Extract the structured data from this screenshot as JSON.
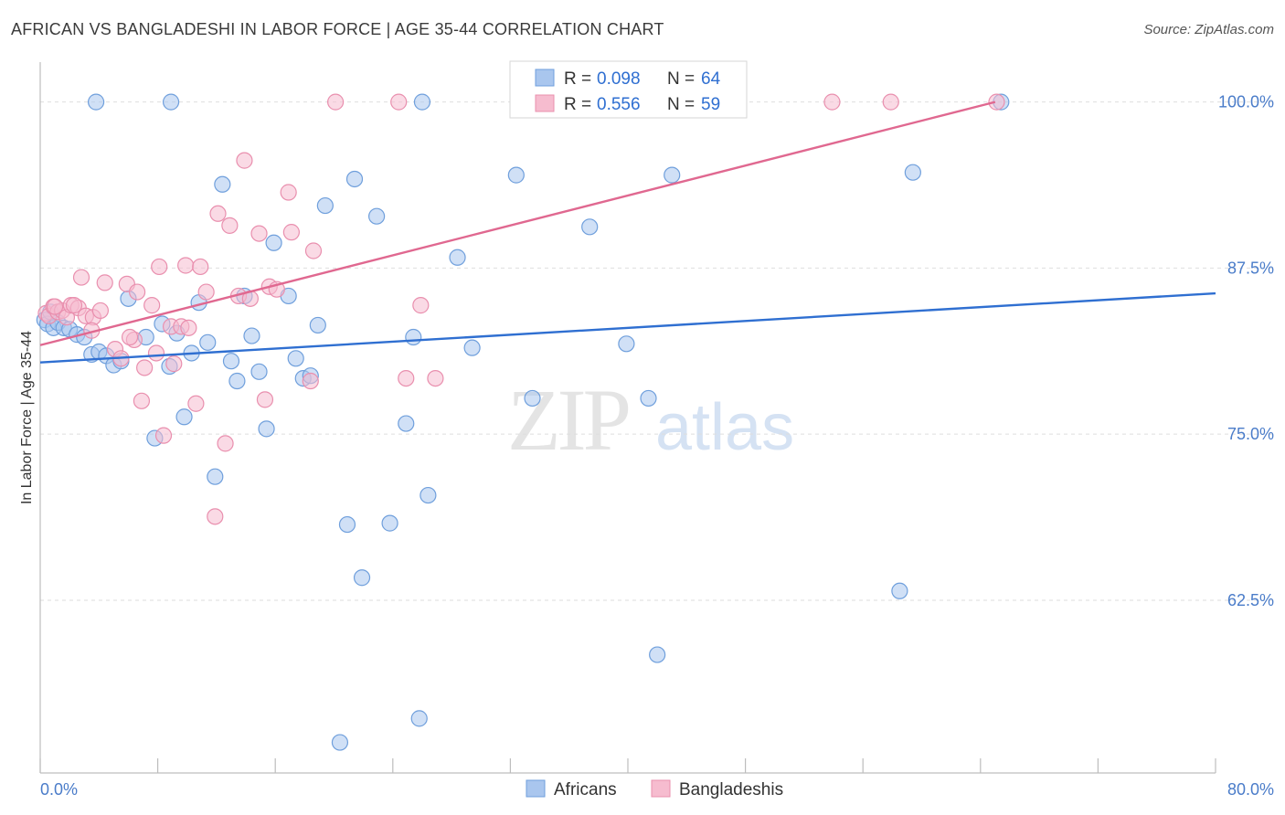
{
  "title": "AFRICAN VS BANGLADESHI IN LABOR FORCE | AGE 35-44 CORRELATION CHART",
  "source": "Source: ZipAtlas.com",
  "watermark": {
    "zip": "ZIP",
    "atlas": "atlas"
  },
  "colors": {
    "africans_fill": "#a9c6ee",
    "africans_stroke": "#6f9fdc",
    "africans_line": "#2f6fd1",
    "bangladeshis_fill": "#f6bccf",
    "bangladeshis_stroke": "#e98fae",
    "bangladeshis_line": "#e06890",
    "tick_color": "#4a7cc9"
  },
  "legend": {
    "rows": [
      {
        "series": "Africans",
        "r_label": "R =",
        "r_value": "0.098",
        "n_label": "N =",
        "n_value": "64"
      },
      {
        "series": "Bangladeshis",
        "r_label": "R =",
        "r_value": "0.556",
        "n_label": "N =",
        "n_value": "59"
      }
    ]
  },
  "chart_data": {
    "type": "scatter",
    "title": "AFRICAN VS BANGLADESHI IN LABOR FORCE | AGE 35-44 CORRELATION CHART",
    "xlabel": "",
    "ylabel": "In Labor Force | Age 35-44",
    "xlim": [
      0,
      80
    ],
    "ylim": [
      49.5,
      103
    ],
    "x_tick_labels": [
      "0.0%",
      "80.0%"
    ],
    "y_ticks": [
      62.5,
      75.0,
      87.5,
      100.0
    ],
    "y_tick_labels": [
      "62.5%",
      "75.0%",
      "87.5%",
      "100.0%"
    ],
    "grid": true,
    "legend_position": "top-center",
    "series": [
      {
        "name": "Africans",
        "trend": {
          "x": [
            0,
            80
          ],
          "y": [
            80.4,
            85.6
          ]
        },
        "points": [
          [
            0.3,
            83.6
          ],
          [
            0.5,
            83.3
          ],
          [
            0.7,
            84.2
          ],
          [
            0.9,
            83.0
          ],
          [
            1.2,
            83.4
          ],
          [
            1.6,
            83.0
          ],
          [
            2.0,
            82.9
          ],
          [
            2.5,
            82.5
          ],
          [
            3.0,
            82.3
          ],
          [
            3.5,
            81.0
          ],
          [
            4.0,
            81.2
          ],
          [
            4.5,
            80.9
          ],
          [
            5.0,
            80.2
          ],
          [
            5.5,
            80.5
          ],
          [
            6.0,
            85.2
          ],
          [
            7.2,
            82.3
          ],
          [
            7.8,
            74.7
          ],
          [
            8.3,
            83.3
          ],
          [
            8.8,
            80.1
          ],
          [
            9.3,
            82.6
          ],
          [
            9.8,
            76.3
          ],
          [
            10.3,
            81.1
          ],
          [
            10.8,
            84.9
          ],
          [
            11.4,
            81.9
          ],
          [
            11.9,
            71.8
          ],
          [
            12.4,
            93.8
          ],
          [
            13.0,
            80.5
          ],
          [
            13.4,
            79.0
          ],
          [
            13.9,
            85.4
          ],
          [
            14.4,
            82.4
          ],
          [
            14.9,
            79.7
          ],
          [
            15.4,
            75.4
          ],
          [
            15.9,
            89.4
          ],
          [
            16.9,
            85.4
          ],
          [
            17.4,
            80.7
          ],
          [
            17.9,
            79.2
          ],
          [
            18.4,
            79.4
          ],
          [
            18.9,
            83.2
          ],
          [
            19.4,
            92.2
          ],
          [
            20.4,
            51.8
          ],
          [
            20.9,
            68.2
          ],
          [
            21.4,
            94.2
          ],
          [
            21.9,
            64.2
          ],
          [
            22.9,
            91.4
          ],
          [
            23.8,
            68.3
          ],
          [
            24.9,
            75.8
          ],
          [
            25.4,
            82.3
          ],
          [
            26.4,
            70.4
          ],
          [
            26.0,
            100.0
          ],
          [
            28.4,
            88.3
          ],
          [
            29.4,
            81.5
          ],
          [
            32.4,
            94.5
          ],
          [
            33.5,
            77.7
          ],
          [
            37.4,
            90.6
          ],
          [
            39.9,
            81.8
          ],
          [
            41.4,
            77.7
          ],
          [
            42.0,
            58.4
          ],
          [
            43.0,
            94.5
          ],
          [
            58.5,
            63.2
          ],
          [
            59.4,
            94.7
          ],
          [
            65.4,
            100.0
          ],
          [
            25.8,
            53.6
          ],
          [
            8.9,
            100.0
          ],
          [
            3.8,
            100.0
          ]
        ]
      },
      {
        "name": "Bangladeshis",
        "trend": {
          "x": [
            0,
            65.0
          ],
          "y": [
            81.7,
            100.0
          ]
        },
        "points": [
          [
            0.4,
            84.1
          ],
          [
            0.6,
            83.9
          ],
          [
            0.9,
            84.6
          ],
          [
            1.2,
            84.2
          ],
          [
            1.5,
            84.3
          ],
          [
            1.8,
            83.8
          ],
          [
            2.1,
            84.7
          ],
          [
            2.6,
            84.5
          ],
          [
            2.8,
            86.8
          ],
          [
            3.1,
            83.9
          ],
          [
            3.6,
            83.8
          ],
          [
            4.1,
            84.3
          ],
          [
            4.4,
            86.4
          ],
          [
            5.1,
            81.4
          ],
          [
            5.5,
            80.7
          ],
          [
            5.9,
            86.3
          ],
          [
            6.4,
            82.1
          ],
          [
            6.6,
            85.7
          ],
          [
            6.9,
            77.5
          ],
          [
            7.1,
            80.0
          ],
          [
            7.6,
            84.7
          ],
          [
            7.9,
            81.1
          ],
          [
            8.1,
            87.6
          ],
          [
            8.4,
            74.9
          ],
          [
            8.9,
            83.1
          ],
          [
            9.1,
            80.3
          ],
          [
            9.6,
            83.1
          ],
          [
            9.9,
            87.7
          ],
          [
            10.1,
            83.0
          ],
          [
            10.6,
            77.3
          ],
          [
            10.9,
            87.6
          ],
          [
            11.3,
            85.7
          ],
          [
            11.9,
            68.8
          ],
          [
            12.1,
            91.6
          ],
          [
            12.6,
            74.3
          ],
          [
            12.9,
            90.7
          ],
          [
            13.5,
            85.4
          ],
          [
            13.9,
            95.6
          ],
          [
            14.3,
            85.2
          ],
          [
            14.9,
            90.1
          ],
          [
            15.3,
            77.6
          ],
          [
            15.6,
            86.1
          ],
          [
            16.1,
            85.9
          ],
          [
            16.9,
            93.2
          ],
          [
            17.1,
            90.2
          ],
          [
            18.4,
            79.0
          ],
          [
            18.6,
            88.8
          ],
          [
            20.1,
            100.0
          ],
          [
            24.4,
            100.0
          ],
          [
            24.9,
            79.2
          ],
          [
            25.9,
            84.7
          ],
          [
            26.9,
            79.2
          ],
          [
            53.9,
            100.0
          ],
          [
            57.9,
            100.0
          ],
          [
            65.1,
            100.0
          ],
          [
            3.5,
            82.8
          ],
          [
            6.1,
            82.3
          ],
          [
            2.3,
            84.7
          ],
          [
            1.0,
            84.6
          ]
        ]
      }
    ]
  },
  "bottom_legend": {
    "items": [
      "Africans",
      "Bangladeshis"
    ]
  }
}
